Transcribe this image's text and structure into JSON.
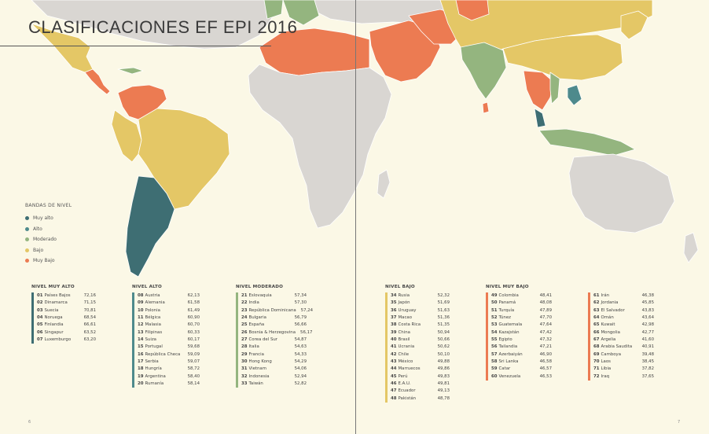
{
  "title": "CLASIFICACIONES EF EPI 2016",
  "colors": {
    "ocean": "#fbf8e6",
    "no_data": "#d9d6d2",
    "muy_alto": "#3e6e73",
    "alto": "#4e8a8c",
    "moderado": "#94b57f",
    "bajo": "#e4c766",
    "muy_bajo": "#ec7b52"
  },
  "legend": {
    "title": "BANDAS DE NIVEL",
    "items": [
      {
        "label": "Muy alto",
        "color": "#3e6e73"
      },
      {
        "label": "Alto",
        "color": "#4e8a8c"
      },
      {
        "label": "Moderado",
        "color": "#94b57f"
      },
      {
        "label": "Bajo",
        "color": "#e4c766"
      },
      {
        "label": "Muy Bajo",
        "color": "#ec7b52"
      }
    ]
  },
  "levels": [
    {
      "title": "NIVEL MUY ALTO",
      "color": "#3e6e73",
      "rows": [
        {
          "rank": "01",
          "country": "Países Bajos",
          "score": "72,16"
        },
        {
          "rank": "02",
          "country": "Dinamarca",
          "score": "71,15"
        },
        {
          "rank": "03",
          "country": "Suecia",
          "score": "70,81"
        },
        {
          "rank": "04",
          "country": "Noruega",
          "score": "68,54"
        },
        {
          "rank": "05",
          "country": "Finlandia",
          "score": "66,61"
        },
        {
          "rank": "06",
          "country": "Singapur",
          "score": "63,52"
        },
        {
          "rank": "07",
          "country": "Luxemburgo",
          "score": "63,20"
        }
      ]
    },
    {
      "title": "NIVEL ALTO",
      "color": "#4e8a8c",
      "rows": [
        {
          "rank": "08",
          "country": "Austria",
          "score": "62,13"
        },
        {
          "rank": "09",
          "country": "Alemania",
          "score": "61,58"
        },
        {
          "rank": "10",
          "country": "Polonia",
          "score": "61,49"
        },
        {
          "rank": "11",
          "country": "Bélgica",
          "score": "60,90"
        },
        {
          "rank": "12",
          "country": "Malasia",
          "score": "60,70"
        },
        {
          "rank": "13",
          "country": "Filipinas",
          "score": "60,33"
        },
        {
          "rank": "14",
          "country": "Suiza",
          "score": "60,17"
        },
        {
          "rank": "15",
          "country": "Portugal",
          "score": "59,68"
        },
        {
          "rank": "16",
          "country": "República Checa",
          "score": "59,09"
        },
        {
          "rank": "17",
          "country": "Serbia",
          "score": "59,07"
        },
        {
          "rank": "18",
          "country": "Hungría",
          "score": "58,72"
        },
        {
          "rank": "19",
          "country": "Argentina",
          "score": "58,40"
        },
        {
          "rank": "20",
          "country": "Rumanía",
          "score": "58,14"
        }
      ]
    },
    {
      "title": "NIVEL MODERADO",
      "color": "#94b57f",
      "rows": [
        {
          "rank": "21",
          "country": "Eslovaquia",
          "score": "57,34"
        },
        {
          "rank": "22",
          "country": "India",
          "score": "57,30"
        },
        {
          "rank": "23",
          "country": "República Dominicana",
          "score": "57,24"
        },
        {
          "rank": "24",
          "country": "Bulgaria",
          "score": "56,79"
        },
        {
          "rank": "25",
          "country": "España",
          "score": "56,66"
        },
        {
          "rank": "26",
          "country": "Bosnia & Herzegovina",
          "score": "56,17"
        },
        {
          "rank": "27",
          "country": "Corea del Sur",
          "score": "54,87"
        },
        {
          "rank": "28",
          "country": "Italia",
          "score": "54,63"
        },
        {
          "rank": "29",
          "country": "Francia",
          "score": "54,33"
        },
        {
          "rank": "30",
          "country": "Hong Kong",
          "score": "54,29"
        },
        {
          "rank": "31",
          "country": "Vietnam",
          "score": "54,06"
        },
        {
          "rank": "32",
          "country": "Indonesia",
          "score": "52,94"
        },
        {
          "rank": "33",
          "country": "Taiwán",
          "score": "52,82"
        }
      ]
    },
    {
      "title": "NIVEL BAJO",
      "color": "#e4c766",
      "rows": [
        {
          "rank": "34",
          "country": "Rusia",
          "score": "52,32"
        },
        {
          "rank": "35",
          "country": "Japón",
          "score": "51,69"
        },
        {
          "rank": "36",
          "country": "Uruguay",
          "score": "51,63"
        },
        {
          "rank": "37",
          "country": "Macao",
          "score": "51,36"
        },
        {
          "rank": "38",
          "country": "Costa Rica",
          "score": "51,35"
        },
        {
          "rank": "39",
          "country": "China",
          "score": "50,94"
        },
        {
          "rank": "40",
          "country": "Brasil",
          "score": "50,66"
        },
        {
          "rank": "41",
          "country": "Ucrania",
          "score": "50,62"
        },
        {
          "rank": "42",
          "country": "Chile",
          "score": "50,10"
        },
        {
          "rank": "43",
          "country": "México",
          "score": "49,88"
        },
        {
          "rank": "44",
          "country": "Marruecos",
          "score": "49,86"
        },
        {
          "rank": "45",
          "country": "Perú",
          "score": "49,83"
        },
        {
          "rank": "46",
          "country": "E.A.U.",
          "score": "49,81"
        },
        {
          "rank": "47",
          "country": "Ecuador",
          "score": "49,13"
        },
        {
          "rank": "48",
          "country": "Pakistán",
          "score": "48,78"
        }
      ]
    },
    {
      "title": "NIVEL MUY BAJO",
      "color": "#ec7b52",
      "rows": [
        {
          "rank": "49",
          "country": "Colombia",
          "score": "48,41"
        },
        {
          "rank": "50",
          "country": "Panamá",
          "score": "48,08"
        },
        {
          "rank": "51",
          "country": "Turquía",
          "score": "47,89"
        },
        {
          "rank": "52",
          "country": "Túnez",
          "score": "47,70"
        },
        {
          "rank": "53",
          "country": "Guatemala",
          "score": "47,64"
        },
        {
          "rank": "54",
          "country": "Kazajstán",
          "score": "47,42"
        },
        {
          "rank": "55",
          "country": "Egipto",
          "score": "47,32"
        },
        {
          "rank": "56",
          "country": "Tailandia",
          "score": "47,21"
        },
        {
          "rank": "57",
          "country": "Azerbaiyán",
          "score": "46,90"
        },
        {
          "rank": "58",
          "country": "Sri Lanka",
          "score": "46,58"
        },
        {
          "rank": "59",
          "country": "Catar",
          "score": "46,57"
        },
        {
          "rank": "60",
          "country": "Venezuela",
          "score": "46,53"
        }
      ]
    },
    {
      "title": "",
      "color": "#ec7b52",
      "rows": [
        {
          "rank": "61",
          "country": "Irán",
          "score": "46,38"
        },
        {
          "rank": "62",
          "country": "Jordania",
          "score": "45,85"
        },
        {
          "rank": "63",
          "country": "El Salvador",
          "score": "43,83"
        },
        {
          "rank": "64",
          "country": "Omán",
          "score": "43,64"
        },
        {
          "rank": "65",
          "country": "Kuwait",
          "score": "42,98"
        },
        {
          "rank": "66",
          "country": "Mongolia",
          "score": "42,77"
        },
        {
          "rank": "67",
          "country": "Argelia",
          "score": "41,60"
        },
        {
          "rank": "68",
          "country": "Arabia Saudita",
          "score": "40,91"
        },
        {
          "rank": "69",
          "country": "Camboya",
          "score": "39,48"
        },
        {
          "rank": "70",
          "country": "Laos",
          "score": "38,45"
        },
        {
          "rank": "71",
          "country": "Libia",
          "score": "37,82"
        },
        {
          "rank": "72",
          "country": "Iraq",
          "score": "37,65"
        }
      ]
    }
  ],
  "page_numbers": {
    "left": "6",
    "right": "7"
  }
}
